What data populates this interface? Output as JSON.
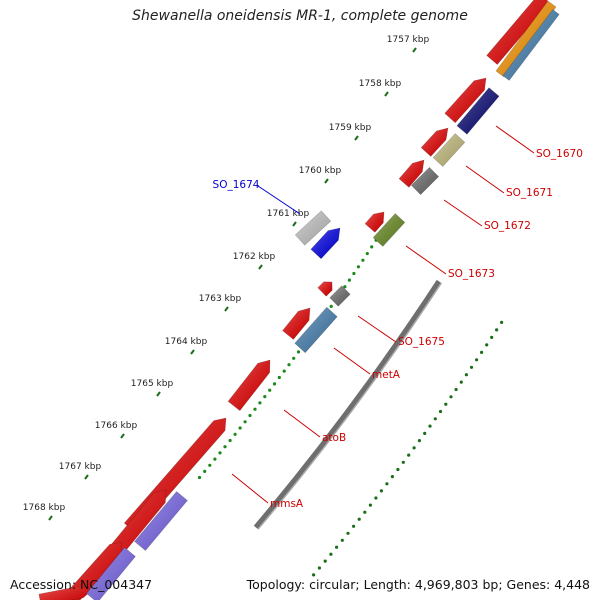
{
  "title": "Shewanella oneidensis MR-1, complete genome",
  "accession": "Accession: NC_004347",
  "topology": "Topology: circular; Length: 4,969,803 bp; Genes: 4,448",
  "scale": {
    "unit": "kbp",
    "ticks": [
      "1757 kbp",
      "1758 kbp",
      "1759 kbp",
      "1760 kbp",
      "1761 kbp",
      "1762 kbp",
      "1763 kbp",
      "1764 kbp",
      "1765 kbp",
      "1766 kbp",
      "1767 kbp",
      "1768 kbp"
    ]
  },
  "colors": {
    "backbone": "#808080",
    "dots": "#1a8a1a",
    "dots_gc": "#1a6e1a",
    "label_blue": "#0000cc",
    "label_red": "#cc0000"
  },
  "genes": [
    {
      "name": "SO_1674",
      "label_color": "#0000cc"
    },
    {
      "name": "SO_1670",
      "label_color": "#cc0000"
    },
    {
      "name": "SO_1671",
      "label_color": "#cc0000"
    },
    {
      "name": "SO_1672",
      "label_color": "#cc0000"
    },
    {
      "name": "SO_1673",
      "label_color": "#cc0000"
    },
    {
      "name": "SO_1675",
      "label_color": "#cc0000"
    },
    {
      "name": "metA",
      "label_color": "#cc0000"
    },
    {
      "name": "atoB",
      "label_color": "#cc0000"
    },
    {
      "name": "mmsA",
      "label_color": "#cc0000"
    }
  ]
}
